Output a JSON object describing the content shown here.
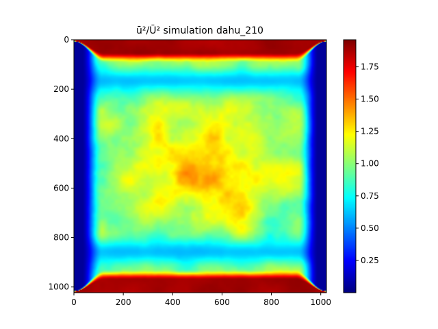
{
  "chart_data": {
    "type": "heatmap",
    "title": "ū²/Ū² simulation dahu_210",
    "xlabel": "",
    "ylabel": "",
    "xlim": [
      0,
      1023
    ],
    "ylim": [
      1023,
      0
    ],
    "x_ticks": [
      0,
      200,
      400,
      600,
      800,
      1000
    ],
    "y_ticks": [
      0,
      200,
      400,
      600,
      800,
      1000
    ],
    "x_tick_labels": [
      "0",
      "200",
      "400",
      "600",
      "800",
      "1000"
    ],
    "y_tick_labels": [
      "0",
      "200",
      "400",
      "600",
      "800",
      "1000"
    ],
    "colormap": "jet",
    "colorbar": {
      "min": 0.0,
      "max": 1.96,
      "ticks": [
        0.25,
        0.5,
        0.75,
        1.0,
        1.25,
        1.5,
        1.75
      ],
      "tick_labels": [
        "0.25",
        "0.50",
        "0.75",
        "1.00",
        "1.25",
        "1.50",
        "1.75"
      ]
    },
    "field_description_levels": {
      "top_bottom_walls": 1.9,
      "near_wall_bands": 0.55,
      "side_corners": 0.05,
      "interior": 1.05,
      "center_peaks": 1.4
    },
    "grid": false
  }
}
